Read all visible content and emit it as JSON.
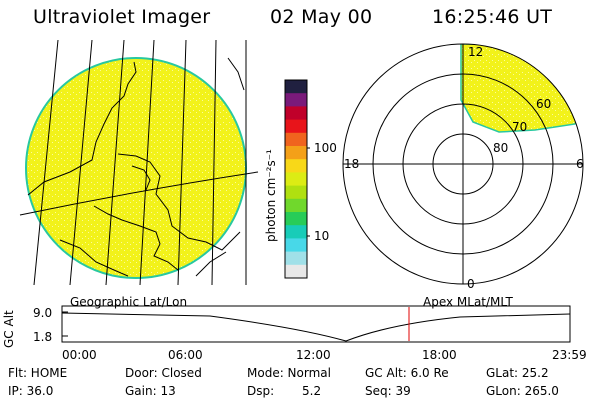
{
  "header": {
    "instrument": "Ultraviolet Imager",
    "date": "02 May 00",
    "time": "16:25:46 UT"
  },
  "colorbar": {
    "unit_label": "photon cm⁻²s⁻¹",
    "tick_100": "100",
    "tick_10": "10",
    "colors": [
      "#202040",
      "#7a1a7a",
      "#c0002a",
      "#e8141a",
      "#f0641e",
      "#f4a018",
      "#f8d818",
      "#dcec14",
      "#b0e010",
      "#70d82c",
      "#28cc58",
      "#18ccb8",
      "#48d8e8",
      "#a0e0e8",
      "#e8e8e8"
    ]
  },
  "polar_plot": {
    "mlt_labels": {
      "top": "12",
      "left": "18",
      "right": "6",
      "bottom": "0"
    },
    "lat_labels": [
      "60",
      "70",
      "80"
    ]
  },
  "bottom_panel": {
    "left_title": "Geographic Lat/Lon",
    "right_title": "Apex MLat/MLT",
    "y_axis_label": "GC Alt",
    "y_ticks": [
      "9.0",
      "1.8"
    ],
    "x_ticks": [
      "00:00",
      "06:00",
      "12:00",
      "18:00",
      "23:59"
    ]
  },
  "status": {
    "flt": "Flt: HOME",
    "ip": "IP: 36.0",
    "door": "Door: Closed",
    "gain": "Gain: 13",
    "mode": "Mode: Normal",
    "dsp_label": "Dsp:",
    "dsp_value": "5.2",
    "gc_alt": "GC Alt: 6.0 Re",
    "seq": "Seq: 39",
    "glat": "GLat: 25.2",
    "glon": "GLon: 265.0"
  },
  "colors": {
    "image_fill": "#f2f21a",
    "limb": "#28c8a0",
    "marker": "#e00000"
  }
}
